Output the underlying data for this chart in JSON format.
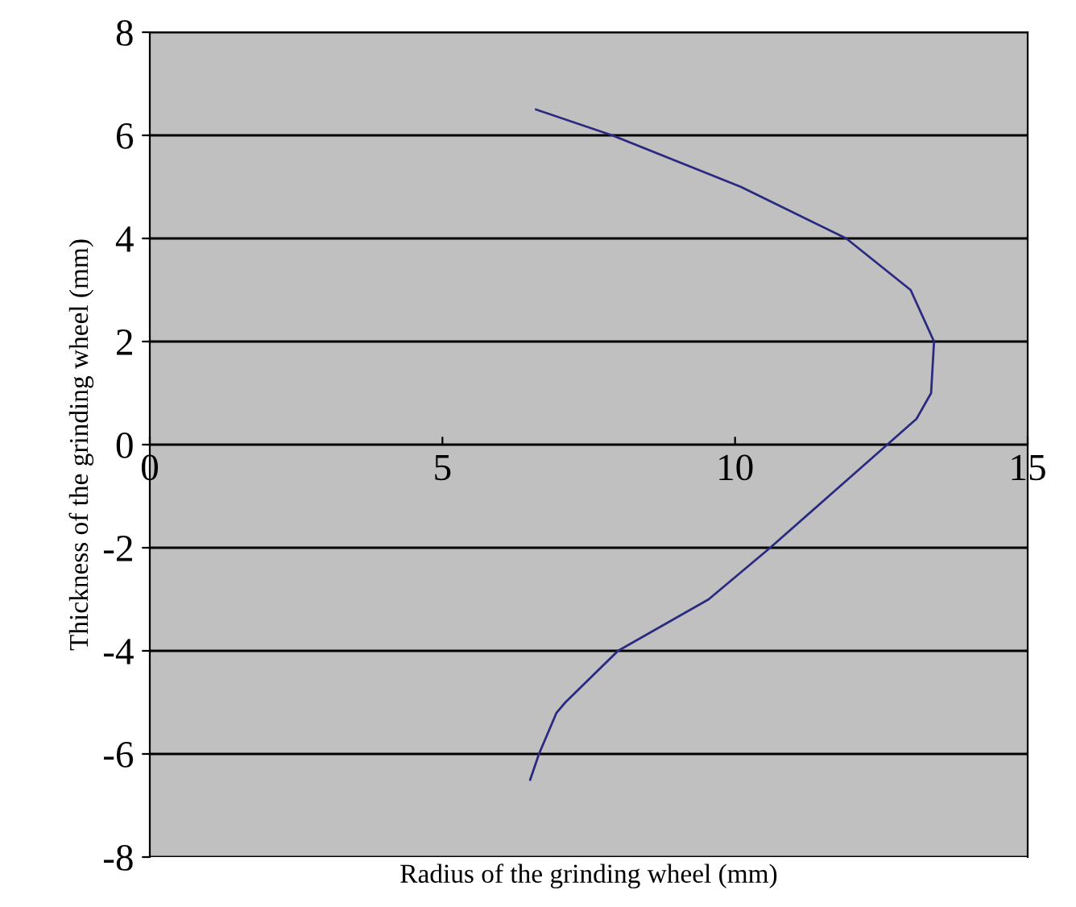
{
  "chart_data": {
    "type": "line",
    "xlabel": "Radius of the grinding wheel (mm)",
    "ylabel": "Thickness of the grinding wheel (mm)",
    "x": [
      6.6,
      7.9,
      10.1,
      11.9,
      13.0,
      13.4,
      13.35,
      13.1,
      12.6,
      11.6,
      10.6,
      9.55,
      8.0,
      7.1,
      6.95,
      6.65,
      6.5
    ],
    "series": [
      {
        "color": "#2a2a80",
        "values": [
          6.5,
          6,
          5,
          4,
          3,
          2,
          1,
          0.5,
          0,
          -1,
          -2,
          -3,
          -4,
          -5,
          -5.2,
          -6,
          -6.5
        ]
      }
    ],
    "xlim": [
      0,
      15
    ],
    "xticks": [
      0,
      5,
      10,
      15
    ],
    "ylim": [
      -8,
      8
    ],
    "yticks": [
      -8,
      -6,
      -4,
      -2,
      0,
      2,
      4,
      6,
      8
    ],
    "grid": "y",
    "marker": "none",
    "line_style": "solid",
    "legend": false
  }
}
